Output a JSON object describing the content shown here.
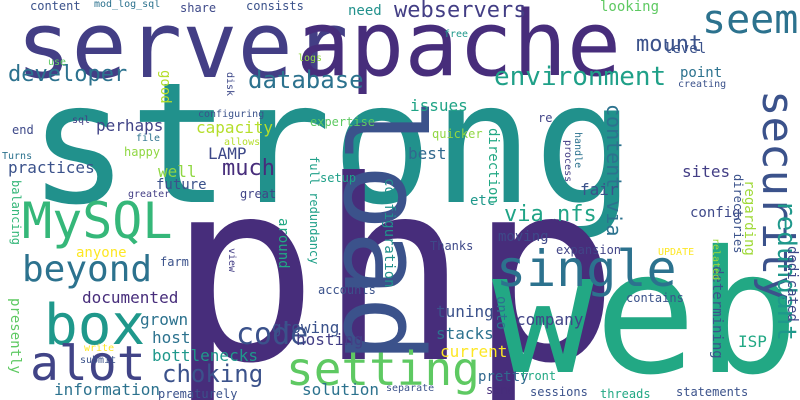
{
  "cloud": {
    "words": [
      {
        "text": "strong",
        "color": "#21918c",
        "weight": 1.0
      },
      {
        "text": "php",
        "color": "#472d7b",
        "weight": 0.98
      },
      {
        "text": "web",
        "color": "#22a884",
        "weight": 0.93
      },
      {
        "text": "server",
        "color": "#433e85",
        "weight": 0.7
      },
      {
        "text": "apache",
        "color": "#472d7b",
        "weight": 0.68
      },
      {
        "text": "load",
        "color": "#3b528b",
        "weight": 0.6
      },
      {
        "text": "setting",
        "color": "#5ec962",
        "weight": 0.4
      },
      {
        "text": "single",
        "color": "#2c728e",
        "weight": 0.4
      },
      {
        "text": "security",
        "color": "#3b528b",
        "weight": 0.38
      },
      {
        "text": "seem",
        "color": "#2c728e",
        "weight": 0.3
      },
      {
        "text": "MySQL",
        "color": "#35b779",
        "weight": 0.34
      },
      {
        "text": "box",
        "color": "#1f988b",
        "weight": 0.34
      },
      {
        "text": "alot",
        "color": "#414487",
        "weight": 0.34
      },
      {
        "text": "beyond",
        "color": "#2c728e",
        "weight": 0.28
      },
      {
        "text": "redundant",
        "color": "#1f988b",
        "weight": 0.22
      },
      {
        "text": "webservers",
        "color": "#433e85",
        "weight": 0.18
      },
      {
        "text": "mount",
        "color": "#3b528b",
        "weight": 0.18
      },
      {
        "text": "database",
        "color": "#2c728e",
        "weight": 0.18
      },
      {
        "text": "environment",
        "color": "#1fa088",
        "weight": 0.18
      },
      {
        "text": "developer",
        "color": "#2c728e",
        "weight": 0.18
      },
      {
        "text": "code",
        "color": "#3b528b",
        "weight": 0.2
      },
      {
        "text": "choking",
        "color": "#3b528b",
        "weight": 0.18
      },
      {
        "text": "content via",
        "color": "#2c728e",
        "weight": 0.16
      },
      {
        "text": "via nfs",
        "color": "#20a486",
        "weight": 0.16
      },
      {
        "text": "much",
        "color": "#472d7b",
        "weight": 0.16
      },
      {
        "text": "hosting",
        "color": "#433e85",
        "weight": 0.14
      },
      {
        "text": "solution",
        "color": "#2c728e",
        "weight": 0.12
      },
      {
        "text": "information",
        "color": "#2c728e",
        "weight": 0.12
      },
      {
        "text": "perhaps",
        "color": "#414487",
        "weight": 0.12
      },
      {
        "text": "capacity",
        "color": "#b5de2b",
        "weight": 0.12
      },
      {
        "text": "LAMP",
        "color": "#3e4989",
        "weight": 0.12
      },
      {
        "text": "best",
        "color": "#31688e",
        "weight": 0.12
      },
      {
        "text": "issues",
        "color": "#20a486",
        "weight": 0.12
      },
      {
        "text": "point",
        "color": "#2c728e",
        "weight": 0.12
      },
      {
        "text": "level",
        "color": "#3b528b",
        "weight": 0.12
      },
      {
        "text": "need",
        "color": "#21918c",
        "weight": 0.12
      },
      {
        "text": "looking",
        "color": "#5ec962",
        "weight": 0.12
      },
      {
        "text": "well",
        "color": "#90d743",
        "weight": 0.12
      },
      {
        "text": "fair",
        "color": "#3b528b",
        "weight": 0.12
      },
      {
        "text": "etc",
        "color": "#1f988b",
        "weight": 0.12
      },
      {
        "text": "sites",
        "color": "#433e85",
        "weight": 0.12
      },
      {
        "text": "config",
        "color": "#3e4989",
        "weight": 0.1
      },
      {
        "text": "tuning",
        "color": "#3b528b",
        "weight": 0.12
      },
      {
        "text": "stacks",
        "color": "#2c728e",
        "weight": 0.12
      },
      {
        "text": "current",
        "color": "#fde725",
        "weight": 0.12
      },
      {
        "text": "pretty",
        "color": "#31688e",
        "weight": 0.1
      },
      {
        "text": "growing",
        "color": "#3b528b",
        "weight": 0.12
      },
      {
        "text": "company",
        "color": "#414487",
        "weight": 0.12
      },
      {
        "text": "moving",
        "color": "#3e4989",
        "weight": 0.1
      },
      {
        "text": "documented",
        "color": "#472d7b",
        "weight": 0.12
      },
      {
        "text": "grown",
        "color": "#2c728e",
        "weight": 0.1
      },
      {
        "text": "host",
        "color": "#2c728e",
        "weight": 0.1
      },
      {
        "text": "bottlenecks",
        "color": "#1f988b",
        "weight": 0.12
      },
      {
        "text": "anyone",
        "color": "#fde725",
        "weight": 0.1
      },
      {
        "text": "future",
        "color": "#3b528b",
        "weight": 0.1
      },
      {
        "text": "practices",
        "color": "#3b528b",
        "weight": 0.12
      },
      {
        "text": "good",
        "color": "#b5de2b",
        "weight": 0.09
      },
      {
        "text": "dedicated",
        "color": "#3e4989",
        "weight": 0.1
      },
      {
        "text": "regarding",
        "color": "#a0da39",
        "weight": 0.1
      },
      {
        "text": "determining",
        "color": "#3b528b",
        "weight": 0.1
      },
      {
        "text": "configuration",
        "color": "#21918c",
        "weight": 0.1
      },
      {
        "text": "direction",
        "color": "#22a884",
        "weight": 0.1
      },
      {
        "text": "around",
        "color": "#22a884",
        "weight": 0.1
      },
      {
        "text": "full redundancy",
        "color": "#1fa088",
        "weight": 0.09
      },
      {
        "text": "presently",
        "color": "#5ec962",
        "weight": 0.1
      },
      {
        "text": "onto",
        "color": "#2c728e",
        "weight": 0.1
      },
      {
        "text": "expertise",
        "color": "#5ec962",
        "weight": 0.08
      },
      {
        "text": "content",
        "color": "#3b528b",
        "weight": 0.08
      },
      {
        "text": "mod_log_sql",
        "color": "#2c728e",
        "weight": 0.06
      },
      {
        "text": "share",
        "color": "#3e4989",
        "weight": 0.08
      },
      {
        "text": "consists",
        "color": "#3b528b",
        "weight": 0.08
      },
      {
        "text": "use",
        "color": "#5ec962",
        "weight": 0.06
      },
      {
        "text": "free",
        "color": "#1f988b",
        "weight": 0.06
      },
      {
        "text": "logs",
        "color": "#90d743",
        "weight": 0.06
      },
      {
        "text": "disk",
        "color": "#3e4989",
        "weight": 0.06
      },
      {
        "text": "configuring",
        "color": "#3b528b",
        "weight": 0.06
      },
      {
        "text": "allows",
        "color": "#b5de2b",
        "weight": 0.06
      },
      {
        "text": "file",
        "color": "#2c728e",
        "weight": 0.06
      },
      {
        "text": "sql",
        "color": "#433e85",
        "weight": 0.06
      },
      {
        "text": "happy",
        "color": "#90d743",
        "weight": 0.08
      },
      {
        "text": "end",
        "color": "#3e4989",
        "weight": 0.08
      },
      {
        "text": "Turns",
        "color": "#2c728e",
        "weight": 0.07
      },
      {
        "text": "greater",
        "color": "#433e85",
        "weight": 0.06
      },
      {
        "text": "balancing",
        "color": "#35b779",
        "weight": 0.07
      },
      {
        "text": "great",
        "color": "#414487",
        "weight": 0.08
      },
      {
        "text": "quicker",
        "color": "#90d743",
        "weight": 0.07
      },
      {
        "text": "re",
        "color": "#414487",
        "weight": 0.07
      },
      {
        "text": "process",
        "color": "#433e85",
        "weight": 0.06
      },
      {
        "text": "handle",
        "color": "#2c728e",
        "weight": 0.06
      },
      {
        "text": "related",
        "color": "#a0da39",
        "weight": 0.06
      },
      {
        "text": "directories",
        "color": "#3b528b",
        "weight": 0.07
      },
      {
        "text": "setup",
        "color": "#1fa088",
        "weight": 0.07
      },
      {
        "text": "creating",
        "color": "#3b528b",
        "weight": 0.06
      },
      {
        "text": "expansion",
        "color": "#414487",
        "weight": 0.07
      },
      {
        "text": "UPDATE",
        "color": "#fde725",
        "weight": 0.06
      },
      {
        "text": "Thanks",
        "color": "#3e4989",
        "weight": 0.07
      },
      {
        "text": "view",
        "color": "#433e85",
        "weight": 0.06
      },
      {
        "text": "farm",
        "color": "#3b528b",
        "weight": 0.07
      },
      {
        "text": "accounts",
        "color": "#3b528b",
        "weight": 0.07
      },
      {
        "text": "contains",
        "color": "#3b528b",
        "weight": 0.07
      },
      {
        "text": "write",
        "color": "#fde725",
        "weight": 0.06
      },
      {
        "text": "submit",
        "color": "#3b528b",
        "weight": 0.06
      },
      {
        "text": "prematurely",
        "color": "#3b528b",
        "weight": 0.07
      },
      {
        "text": "front",
        "color": "#22a884",
        "weight": 0.07
      },
      {
        "text": "separate",
        "color": "#3b528b",
        "weight": 0.06
      },
      {
        "text": "send",
        "color": "#472d7b",
        "weight": 0.07
      },
      {
        "text": "sessions",
        "color": "#3b528b",
        "weight": 0.07
      },
      {
        "text": "threads",
        "color": "#22a884",
        "weight": 0.07
      },
      {
        "text": "statements",
        "color": "#3b528b",
        "weight": 0.07
      },
      {
        "text": "ISP",
        "color": "#22a884",
        "weight": 0.1
      }
    ]
  }
}
